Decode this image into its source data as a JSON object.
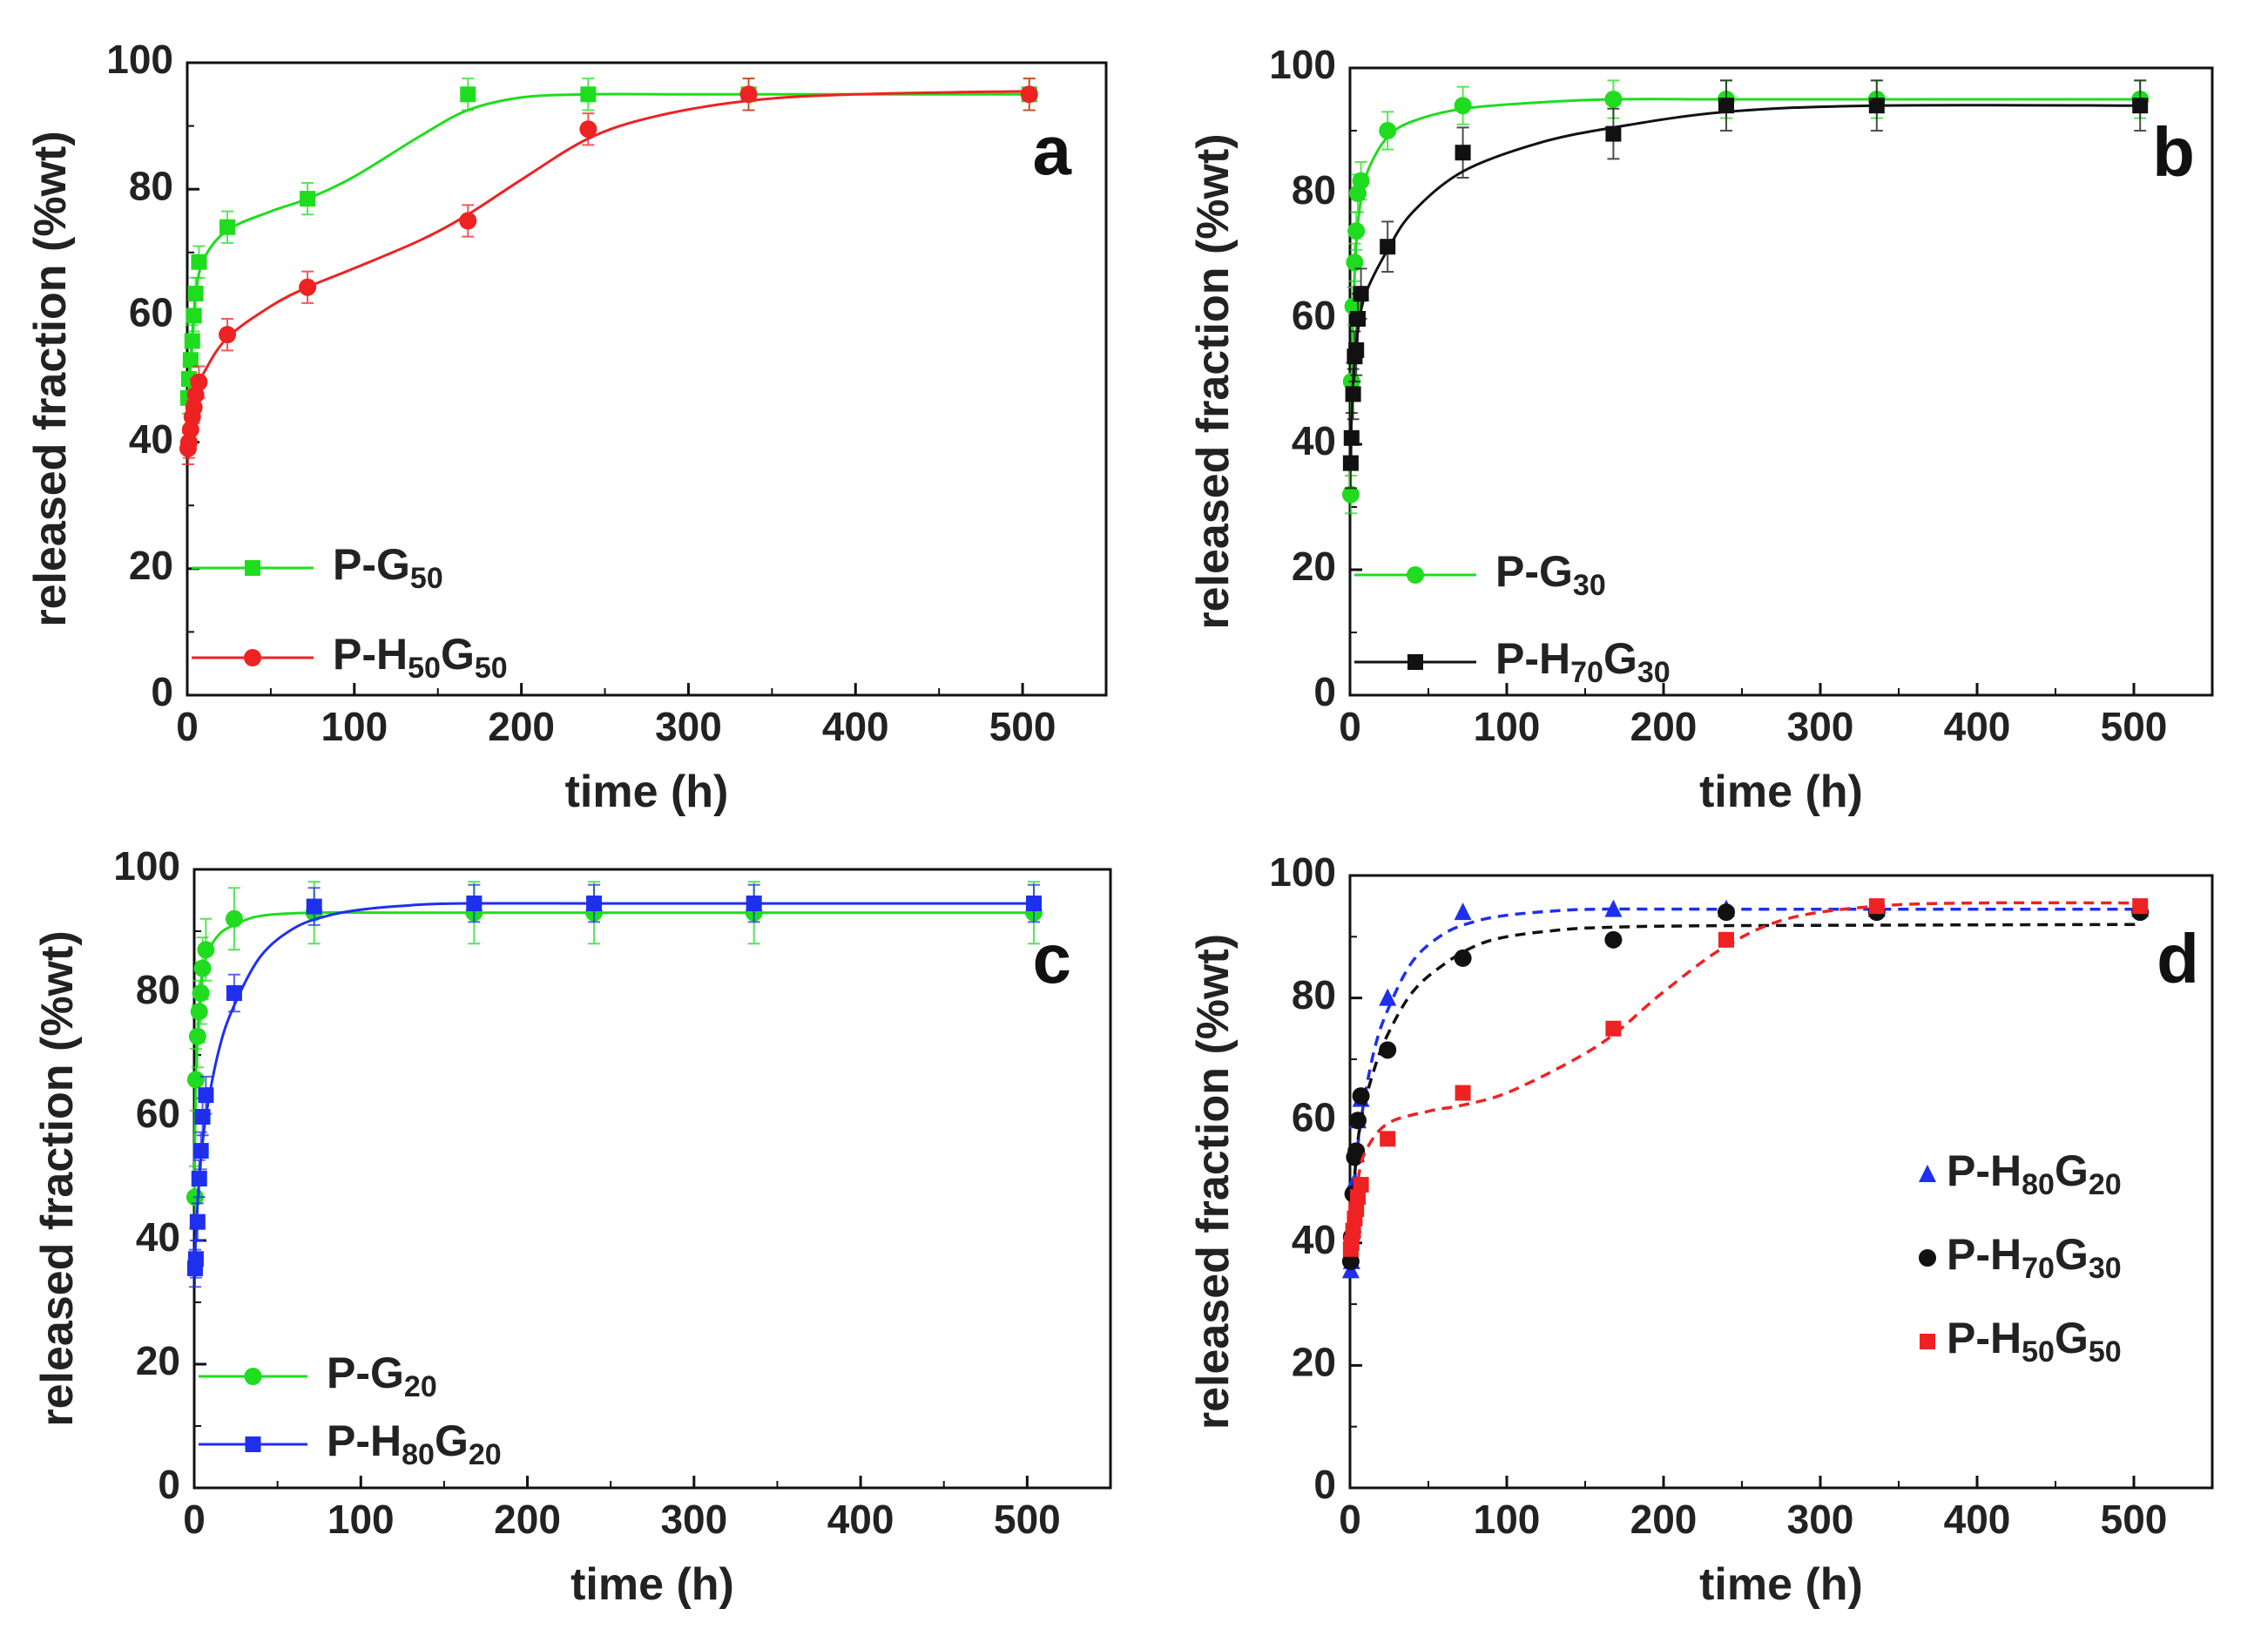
{
  "chart_data": [
    {
      "id": "a",
      "type": "scatter",
      "panel_label": "a",
      "xlabel": "time (h)",
      "ylabel": "released fraction (%wt)",
      "xlim": [
        0,
        550
      ],
      "ylim": [
        0,
        100
      ],
      "xticks": [
        0,
        100,
        200,
        300,
        400,
        500
      ],
      "yticks": [
        0,
        20,
        40,
        60,
        80,
        100
      ],
      "legend": [
        {
          "series": 0,
          "base": "P-G",
          "sub1": "50"
        },
        {
          "series": 1,
          "base": "P-H",
          "sub1": "50",
          "mid": "G",
          "sub2": "50"
        }
      ],
      "series": [
        {
          "name": "P-G50",
          "color": "#1fdc1f",
          "marker": "square",
          "line": "solid",
          "err": 2.5,
          "x": [
            0.5,
            1,
            2,
            3,
            4,
            5,
            7,
            24,
            72,
            168,
            240,
            336,
            504
          ],
          "y": [
            47,
            50,
            53,
            56,
            60,
            63.5,
            68.5,
            74,
            78.5,
            95,
            95,
            95,
            95
          ],
          "fit_x": [
            0,
            2,
            5,
            10,
            24,
            50,
            72,
            100,
            140,
            168,
            200,
            240,
            300,
            400,
            504
          ],
          "fit_y": [
            40,
            52,
            63,
            69,
            73.5,
            76.5,
            78.5,
            82,
            88.5,
            92.5,
            94.5,
            95,
            95,
            95,
            95
          ]
        },
        {
          "name": "P-H50G50",
          "color": "#ee2222",
          "marker": "circle",
          "line": "solid",
          "err": 2.5,
          "x": [
            0.5,
            1,
            2,
            3,
            4,
            5,
            7,
            24,
            72,
            168,
            240,
            336,
            504
          ],
          "y": [
            39,
            40,
            42,
            44,
            45.5,
            47.5,
            49.5,
            57,
            64.5,
            75,
            89.5,
            95,
            95
          ],
          "fit_x": [
            0,
            5,
            10,
            24,
            50,
            72,
            100,
            140,
            168,
            200,
            240,
            280,
            336,
            400,
            504
          ],
          "fit_y": [
            39,
            47.5,
            51,
            56.5,
            61.5,
            64.5,
            67.5,
            72,
            76,
            81.5,
            88,
            91.5,
            94,
            95,
            95.5
          ]
        }
      ]
    },
    {
      "id": "b",
      "type": "scatter",
      "panel_label": "b",
      "xlabel": "time (h)",
      "ylabel": "released fraction (%wt)",
      "xlim": [
        0,
        550
      ],
      "ylim": [
        0,
        100
      ],
      "xticks": [
        0,
        100,
        200,
        300,
        400,
        500
      ],
      "yticks": [
        0,
        20,
        40,
        60,
        80,
        100
      ],
      "legend": [
        {
          "series": 0,
          "base": "P-G",
          "sub1": "30"
        },
        {
          "series": 1,
          "base": "P-H",
          "sub1": "70",
          "mid": "G",
          "sub2": "30"
        }
      ],
      "series": [
        {
          "name": "P-G30",
          "color": "#1fdc1f",
          "marker": "circle",
          "line": "solid",
          "err": 3,
          "x": [
            0.5,
            1,
            2,
            3,
            4,
            5,
            7,
            24,
            72,
            168,
            240,
            336,
            504
          ],
          "y": [
            32,
            50,
            62,
            69,
            74,
            80,
            82,
            90,
            94,
            95,
            95,
            95,
            95
          ],
          "fit_x": [
            0,
            2,
            4,
            7,
            12,
            24,
            40,
            72,
            120,
            168,
            240,
            336,
            504
          ],
          "fit_y": [
            32,
            60,
            72,
            79,
            84,
            89,
            91.5,
            93.5,
            94.5,
            95,
            95,
            95,
            95
          ]
        },
        {
          "name": "P-H70G30",
          "color": "#111111",
          "marker": "square",
          "line": "solid",
          "err": 4,
          "x": [
            0.5,
            1,
            2,
            3,
            4,
            5,
            7,
            24,
            72,
            168,
            240,
            336,
            504
          ],
          "y": [
            37,
            41,
            48,
            54,
            55,
            60,
            64,
            71.5,
            86.5,
            89.5,
            94,
            94,
            94
          ],
          "fit_x": [
            0,
            2,
            5,
            10,
            24,
            40,
            72,
            120,
            168,
            240,
            336,
            504
          ],
          "fit_y": [
            37,
            50,
            58,
            64,
            71,
            77,
            83.5,
            88,
            90.5,
            93,
            94,
            94
          ]
        }
      ]
    },
    {
      "id": "c",
      "type": "scatter",
      "panel_label": "c",
      "xlabel": "time (h)",
      "ylabel": "released fraction (%wt)",
      "xlim": [
        0,
        550
      ],
      "ylim": [
        0,
        100
      ],
      "xticks": [
        0,
        100,
        200,
        300,
        400,
        500
      ],
      "yticks": [
        0,
        20,
        40,
        60,
        80,
        100
      ],
      "legend": [
        {
          "series": 0,
          "base": "P-G",
          "sub1": "20"
        },
        {
          "series": 1,
          "base": "P-H",
          "sub1": "80",
          "mid": "G",
          "sub2": "20"
        }
      ],
      "series": [
        {
          "name": "P-G20",
          "color": "#1fdc1f",
          "marker": "circle",
          "line": "solid",
          "err": 5,
          "x": [
            0.5,
            1,
            2,
            3,
            4,
            5,
            7,
            24,
            72,
            168,
            240,
            336,
            504
          ],
          "y": [
            47,
            66,
            73,
            77,
            80,
            84,
            87,
            92,
            93,
            93,
            93,
            93,
            93
          ],
          "fit_x": [
            0,
            1,
            3,
            5,
            8,
            15,
            24,
            40,
            72,
            120,
            240,
            504
          ],
          "fit_y": [
            47,
            66,
            77,
            83,
            86.5,
            89.5,
            91,
            92.5,
            93,
            93,
            93,
            93
          ]
        },
        {
          "name": "P-H80G20",
          "color": "#1f2fee",
          "marker": "square",
          "line": "solid",
          "err": 3,
          "x": [
            0.5,
            1,
            2,
            3,
            4,
            5,
            7,
            24,
            72,
            168,
            240,
            336,
            504
          ],
          "y": [
            35.5,
            37,
            43,
            50,
            54.5,
            60,
            63.5,
            80,
            94,
            94.5,
            94.5,
            94.5,
            94.5
          ],
          "fit_x": [
            0,
            3,
            7,
            15,
            24,
            40,
            60,
            80,
            100,
            130,
            160,
            240,
            504
          ],
          "fit_y": [
            35.5,
            50,
            60,
            71,
            78,
            86,
            90.5,
            92.5,
            93.5,
            94.2,
            94.5,
            94.5,
            94.5
          ]
        }
      ]
    },
    {
      "id": "d",
      "type": "scatter",
      "panel_label": "d",
      "xlabel": "time (h)",
      "ylabel": "released fraction (%wt)",
      "xlim": [
        0,
        550
      ],
      "ylim": [
        0,
        100
      ],
      "xticks": [
        0,
        100,
        200,
        300,
        400,
        500
      ],
      "yticks": [
        0,
        20,
        40,
        60,
        80,
        100
      ],
      "legend": [
        {
          "series": 0,
          "base": "P-H",
          "sub1": "80",
          "mid": "G",
          "sub2": "20"
        },
        {
          "series": 1,
          "base": "P-H",
          "sub1": "70",
          "mid": "G",
          "sub2": "30"
        },
        {
          "series": 2,
          "base": "P-H",
          "sub1": "50",
          "mid": "G",
          "sub2": "50"
        }
      ],
      "series": [
        {
          "name": "P-H80G20",
          "color": "#1f2fee",
          "marker": "triangle",
          "line": "dashed",
          "err": 0,
          "x": [
            0.5,
            1,
            2,
            3,
            4,
            5,
            7,
            24,
            72,
            168,
            240,
            336,
            504
          ],
          "y": [
            35.5,
            37,
            43,
            50,
            54.5,
            60,
            63.5,
            80,
            94,
            94.5,
            94.5,
            94.5,
            94.5
          ],
          "fit_x": [
            0,
            3,
            7,
            15,
            24,
            40,
            60,
            80,
            100,
            130,
            160,
            240,
            504
          ],
          "fit_y": [
            35.5,
            50,
            60,
            71,
            78,
            86,
            90.5,
            92.5,
            93.5,
            94.2,
            94.5,
            94.5,
            94.5
          ]
        },
        {
          "name": "P-H70G30",
          "color": "#111111",
          "marker": "circle",
          "line": "dashed",
          "err": 0,
          "x": [
            0.5,
            1,
            2,
            3,
            4,
            5,
            7,
            24,
            72,
            168,
            240,
            336,
            504
          ],
          "y": [
            37,
            41,
            48,
            54,
            55,
            60,
            64,
            71.5,
            86.5,
            89.5,
            94,
            94,
            94
          ],
          "fit_x": [
            0,
            3,
            7,
            15,
            24,
            40,
            60,
            80,
            100,
            130,
            160,
            240,
            504
          ],
          "fit_y": [
            37,
            51,
            60,
            68,
            74,
            81,
            85.5,
            88.5,
            90,
            91,
            91.5,
            91.8,
            92
          ]
        },
        {
          "name": "P-H50G50",
          "color": "#ee2222",
          "marker": "square",
          "line": "dashed",
          "err": 0,
          "x": [
            0.5,
            1,
            2,
            3,
            4,
            5,
            7,
            24,
            72,
            168,
            240,
            336,
            504
          ],
          "y": [
            39,
            40,
            42,
            44,
            45.5,
            47.5,
            49.5,
            57,
            64.5,
            75,
            89.5,
            95,
            95
          ],
          "fit_x": [
            0,
            5,
            10,
            24,
            50,
            72,
            100,
            140,
            168,
            200,
            240,
            280,
            336,
            400,
            504
          ],
          "fit_y": [
            39,
            50,
            55,
            59.5,
            61.5,
            62.5,
            64.5,
            69.5,
            74,
            81,
            88.5,
            93,
            95,
            95.5,
            95.5
          ]
        }
      ]
    }
  ]
}
